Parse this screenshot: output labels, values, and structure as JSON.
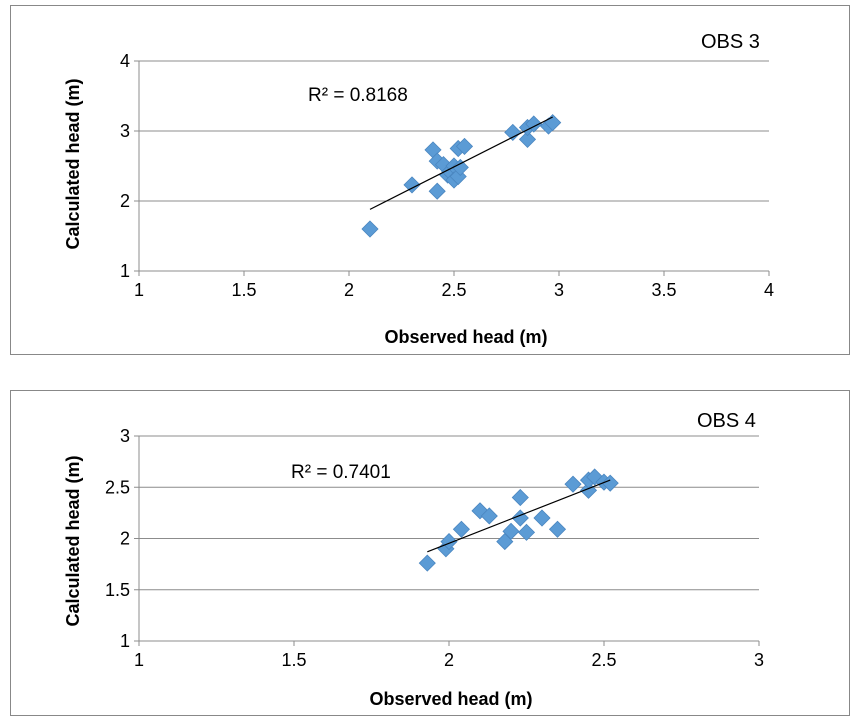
{
  "chart_data": [
    {
      "type": "scatter",
      "title": "",
      "label": "OBS 3",
      "xlabel": "Observed head (m)",
      "ylabel": "Calculated head (m)",
      "xlim": [
        1,
        4
      ],
      "ylim": [
        1,
        4
      ],
      "xticks": [
        "1",
        "1.5",
        "2",
        "2.5",
        "3",
        "3.5",
        "4"
      ],
      "yticks": [
        "1",
        "2",
        "3",
        "4"
      ],
      "grid": "horizontal",
      "marker": "diamond",
      "color": "#5b9bd5",
      "r2_label": "R² = 0.8168",
      "trendline": {
        "x": [
          2.1,
          2.97
        ],
        "y": [
          1.88,
          3.2
        ]
      },
      "points": [
        {
          "x": 2.1,
          "y": 1.6
        },
        {
          "x": 2.3,
          "y": 2.23
        },
        {
          "x": 2.4,
          "y": 2.73
        },
        {
          "x": 2.42,
          "y": 2.14
        },
        {
          "x": 2.42,
          "y": 2.57
        },
        {
          "x": 2.45,
          "y": 2.52
        },
        {
          "x": 2.47,
          "y": 2.37
        },
        {
          "x": 2.48,
          "y": 2.42
        },
        {
          "x": 2.5,
          "y": 2.5
        },
        {
          "x": 2.5,
          "y": 2.3
        },
        {
          "x": 2.52,
          "y": 2.35
        },
        {
          "x": 2.52,
          "y": 2.75
        },
        {
          "x": 2.55,
          "y": 2.78
        },
        {
          "x": 2.53,
          "y": 2.48
        },
        {
          "x": 2.78,
          "y": 2.98
        },
        {
          "x": 2.85,
          "y": 2.88
        },
        {
          "x": 2.85,
          "y": 3.05
        },
        {
          "x": 2.88,
          "y": 3.1
        },
        {
          "x": 2.95,
          "y": 3.07
        },
        {
          "x": 2.97,
          "y": 3.12
        }
      ]
    },
    {
      "type": "scatter",
      "title": "",
      "label": "OBS 4",
      "xlabel": "Observed head (m)",
      "ylabel": "Calculated head (m)",
      "xlim": [
        1,
        3
      ],
      "ylim": [
        1,
        3
      ],
      "xticks": [
        "1",
        "1.5",
        "2",
        "2.5",
        "3"
      ],
      "yticks": [
        "1",
        "1.5",
        "2",
        "2.5",
        "3"
      ],
      "grid": "horizontal",
      "marker": "diamond",
      "color": "#5b9bd5",
      "r2_label": "R² = 0.7401",
      "trendline": {
        "x": [
          1.93,
          2.52
        ],
        "y": [
          1.87,
          2.57
        ]
      },
      "points": [
        {
          "x": 1.93,
          "y": 1.76
        },
        {
          "x": 1.99,
          "y": 1.9
        },
        {
          "x": 2.0,
          "y": 1.97
        },
        {
          "x": 2.04,
          "y": 2.09
        },
        {
          "x": 2.1,
          "y": 2.27
        },
        {
          "x": 2.13,
          "y": 2.22
        },
        {
          "x": 2.18,
          "y": 1.97
        },
        {
          "x": 2.2,
          "y": 2.07
        },
        {
          "x": 2.23,
          "y": 2.4
        },
        {
          "x": 2.23,
          "y": 2.2
        },
        {
          "x": 2.25,
          "y": 2.06
        },
        {
          "x": 2.3,
          "y": 2.2
        },
        {
          "x": 2.35,
          "y": 2.09
        },
        {
          "x": 2.4,
          "y": 2.53
        },
        {
          "x": 2.45,
          "y": 2.47
        },
        {
          "x": 2.45,
          "y": 2.57
        },
        {
          "x": 2.47,
          "y": 2.6
        },
        {
          "x": 2.5,
          "y": 2.55
        },
        {
          "x": 2.52,
          "y": 2.54
        }
      ]
    }
  ]
}
